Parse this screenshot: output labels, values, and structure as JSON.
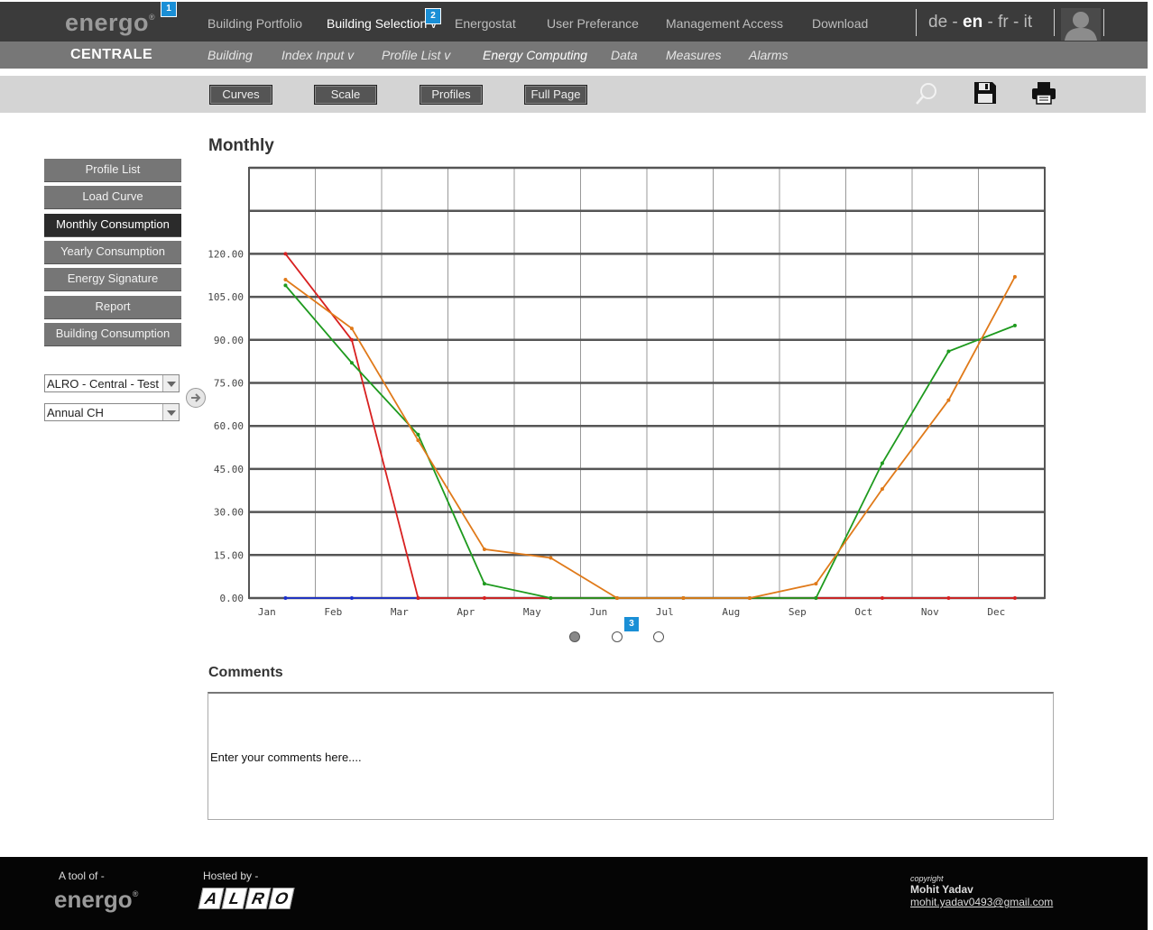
{
  "header": {
    "logo": "energo",
    "logo_mark": "®",
    "nav": [
      "Building Portfolio",
      "Building Selection v",
      "Energostat",
      "User Preferance",
      "Management Access",
      "Download"
    ],
    "badges": [
      "1",
      "2",
      "3"
    ],
    "lang": {
      "de": "de",
      "en": "en",
      "fr": "fr",
      "it": "it",
      "sep": " - "
    }
  },
  "subheader": {
    "section": "CENTRALE",
    "nav": [
      "Building",
      "Index Input v",
      "Profile List v",
      "Energy Computing",
      "Data",
      "Measures",
      "Alarms"
    ]
  },
  "toolbar": {
    "buttons": [
      "Curves",
      "Scale",
      "Profiles",
      "Full Page"
    ],
    "icons": [
      "search-icon",
      "save-icon",
      "print-icon"
    ]
  },
  "sidebar": {
    "items": [
      "Profile List",
      "Load Curve",
      "Monthly Consumption",
      "Yearly Consumption",
      "Energy Signature",
      "Report",
      "Building Consumption"
    ],
    "active_index": 2,
    "select_building": "ALRO - Central - Test",
    "select_profile": "Annual CH"
  },
  "chart_title": "Monthly",
  "chart_data": {
    "type": "line",
    "categories": [
      "Jan",
      "Feb",
      "Mar",
      "Apr",
      "May",
      "Jun",
      "Jul",
      "Aug",
      "Sep",
      "Oct",
      "Nov",
      "Dec"
    ],
    "ylim": [
      0,
      150
    ],
    "yticks": [
      "0.00",
      "15.00",
      "30.00",
      "45.00",
      "60.00",
      "75.00",
      "90.00",
      "105.00",
      "120.00"
    ],
    "grid": true,
    "series": [
      {
        "color": "#1a2fcf",
        "values": [
          0,
          0,
          0,
          null,
          null,
          null,
          null,
          null,
          null,
          null,
          null,
          null
        ]
      },
      {
        "color": "#d82020",
        "values": [
          120,
          90,
          0,
          0,
          0,
          0,
          0,
          0,
          0,
          0,
          0,
          0
        ]
      },
      {
        "color": "#1e9a1e",
        "values": [
          109,
          82,
          57,
          5,
          0,
          0,
          0,
          0,
          0,
          47,
          86,
          95
        ]
      },
      {
        "color": "#e07a1a",
        "values": [
          111,
          94,
          55,
          17,
          14,
          0,
          0,
          0,
          5,
          38,
          69,
          112
        ]
      }
    ]
  },
  "pager": {
    "active": 0,
    "count": 3
  },
  "comments": {
    "title": "Comments",
    "placeholder": "Enter your comments here...."
  },
  "footer": {
    "tool_of": "A tool of -",
    "hosted_by": "Hosted by -",
    "logo": "energo",
    "logo_mark": "®",
    "host_letters": [
      "A",
      "L",
      "R",
      "O"
    ],
    "copyright": "copyright",
    "author": "Mohit Yadav",
    "email": "mohit.yadav0493@gmail.com"
  }
}
